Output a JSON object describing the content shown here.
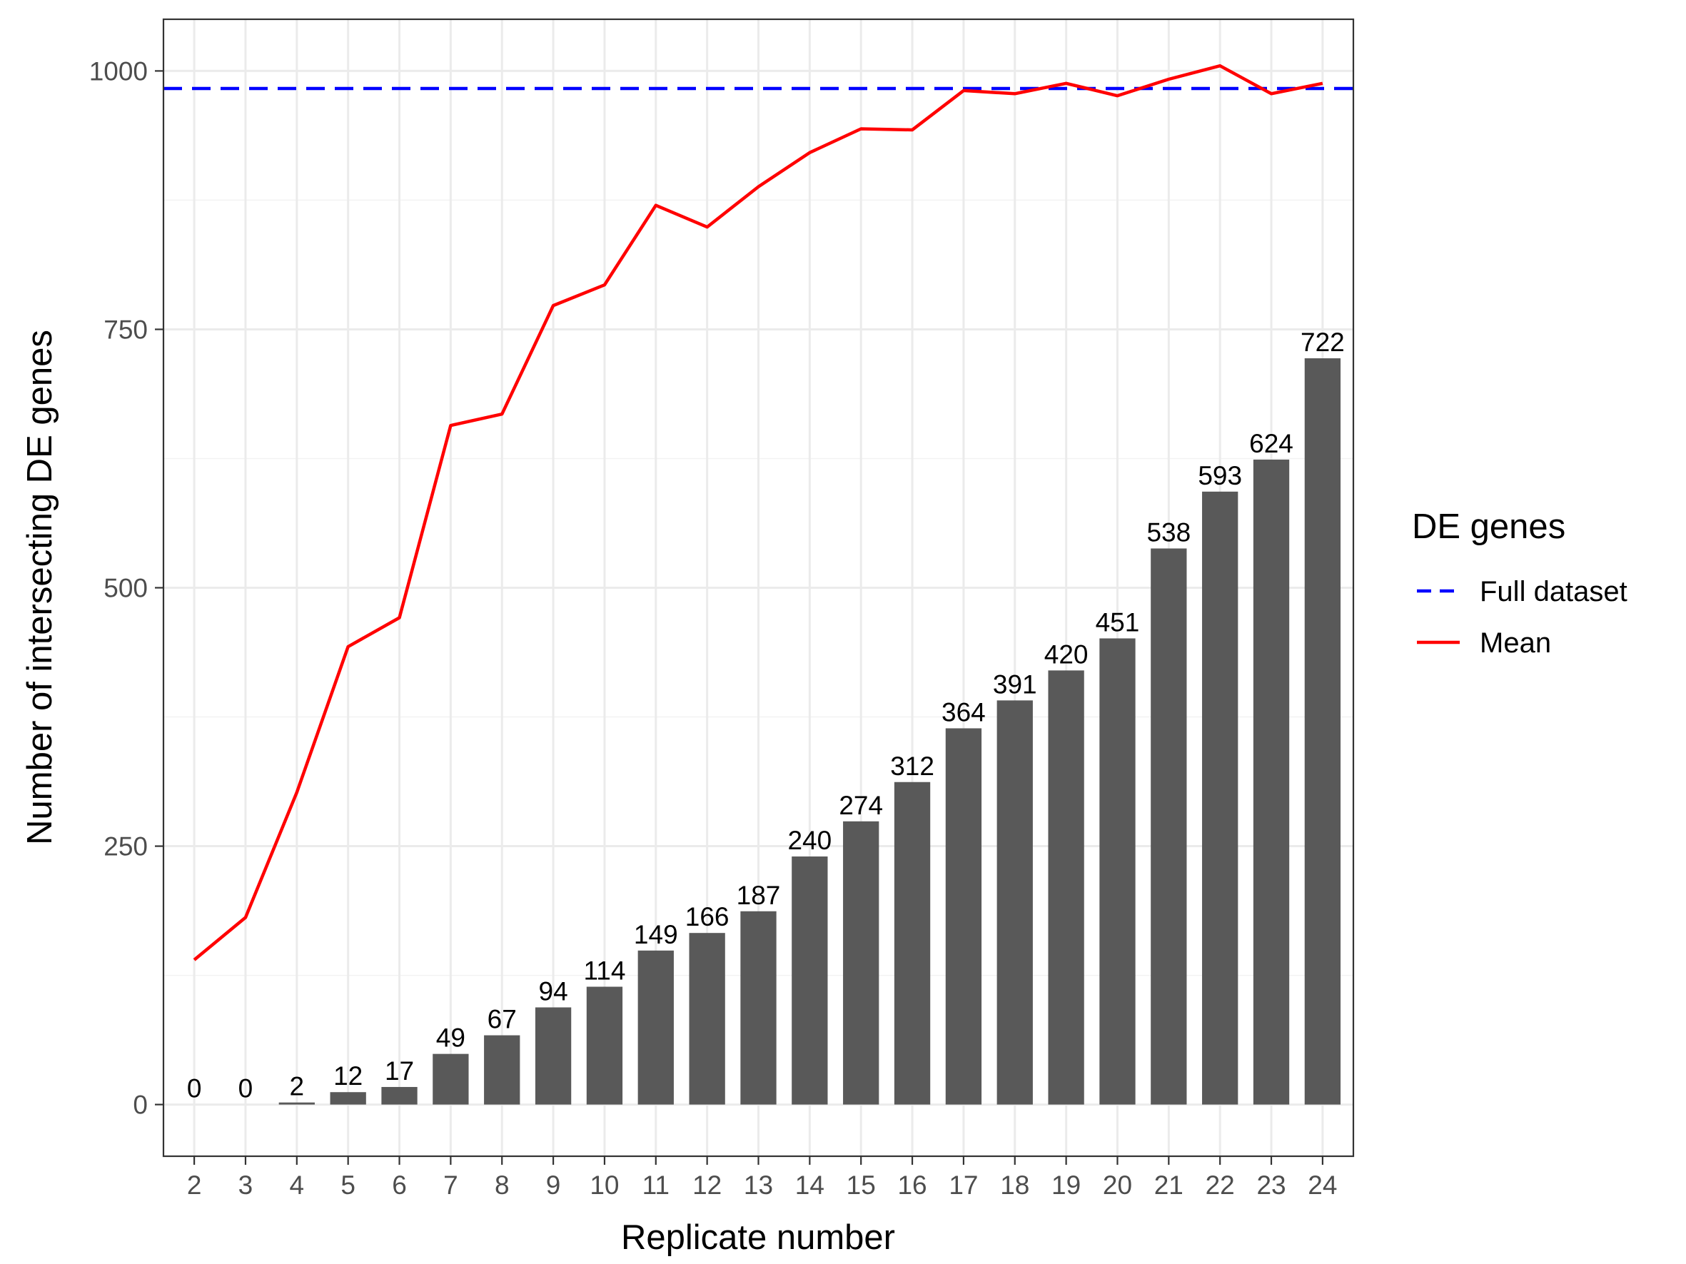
{
  "chart_data": {
    "type": "bar",
    "title": "",
    "xlabel": "Replicate number",
    "ylabel": "Number of intersecting DE genes",
    "categories": [
      "2",
      "3",
      "4",
      "5",
      "6",
      "7",
      "8",
      "9",
      "10",
      "11",
      "12",
      "13",
      "14",
      "15",
      "16",
      "17",
      "18",
      "19",
      "20",
      "21",
      "22",
      "23",
      "24"
    ],
    "bars": {
      "values": [
        0,
        0,
        2,
        12,
        17,
        49,
        67,
        94,
        114,
        149,
        166,
        187,
        240,
        274,
        312,
        364,
        391,
        420,
        451,
        538,
        593,
        624,
        722
      ],
      "labels": [
        "0",
        "0",
        "2",
        "12",
        "17",
        "49",
        "67",
        "94",
        "114",
        "149",
        "166",
        "187",
        "240",
        "274",
        "312",
        "364",
        "391",
        "420",
        "451",
        "538",
        "593",
        "624",
        "722"
      ],
      "color": "#595959"
    },
    "series": [
      {
        "name": "Mean",
        "type": "line",
        "color": "#ff0000",
        "values": [
          140,
          181,
          302,
          443,
          471,
          657,
          668,
          773,
          793,
          870,
          849,
          888,
          921,
          944,
          943,
          981,
          978,
          988,
          976,
          992,
          1005,
          978,
          988
        ]
      },
      {
        "name": "Full dataset",
        "type": "hline",
        "style": "dashed",
        "color": "#0000ff",
        "value": 983
      }
    ],
    "ylim": [
      -50,
      1050
    ],
    "yticks": [
      0,
      250,
      500,
      750,
      1000
    ],
    "yticklabels": [
      "0",
      "250",
      "500",
      "750",
      "1000"
    ],
    "grid": true,
    "legend": {
      "title": "DE genes",
      "placement": "right",
      "entries": [
        {
          "label": "Full dataset",
          "color": "#0000ff",
          "style": "dashed"
        },
        {
          "label": "Mean",
          "color": "#ff0000",
          "style": "solid"
        }
      ]
    }
  }
}
